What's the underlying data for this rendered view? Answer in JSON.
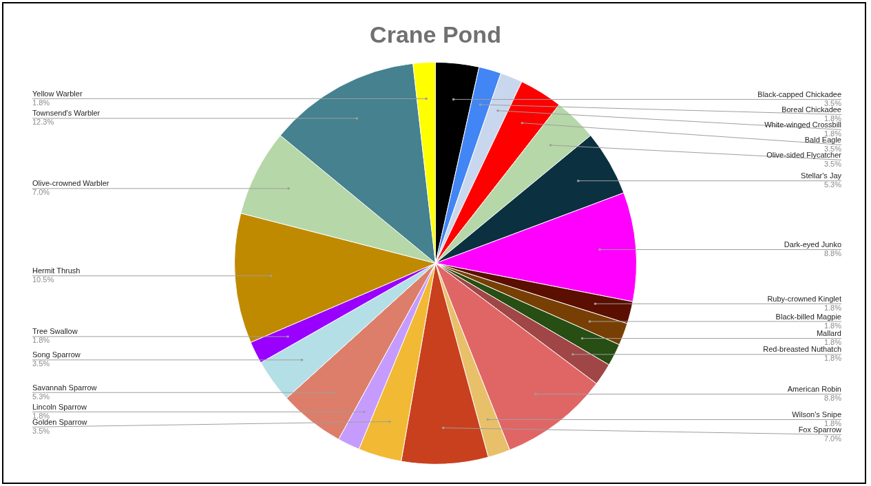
{
  "chart_data": {
    "type": "pie",
    "title": "Crane Pond",
    "categories": [
      "Black-capped Chickadee",
      "Boreal Chickadee",
      "White-winged Crossbill",
      "Bald Eagle",
      "Olive-sided Flycatcher",
      "Stellar's Jay",
      "Dark-eyed Junko",
      "Ruby-crowned Kinglet",
      "Black-billed Magpie",
      "Mallard",
      "Red-breasted Nuthatch",
      "American Robin",
      "Wilson's Snipe",
      "Fox Sparrow",
      "Golden Sparrow",
      "Lincoln Sparrow",
      "Savannah Sparrow",
      "Song Sparrow",
      "Tree Swallow",
      "Hermit Thrush",
      "Olive-crowned Warbler",
      "Townsend's Warbler",
      "Yellow Warbler"
    ],
    "values": [
      3.5,
      1.8,
      1.8,
      3.5,
      3.5,
      5.3,
      8.8,
      1.8,
      1.8,
      1.8,
      1.8,
      8.8,
      1.8,
      7.0,
      3.5,
      1.8,
      5.3,
      3.5,
      1.8,
      10.5,
      7.0,
      12.3,
      1.8
    ],
    "value_labels": [
      "3.5%",
      "1.8%",
      "1.8%",
      "3.5%",
      "3.5%",
      "5.3%",
      "8.8%",
      "1.8%",
      "1.8%",
      "1.8%",
      "1.8%",
      "8.8%",
      "1.8%",
      "7.0%",
      "3.5%",
      "1.8%",
      "5.3%",
      "3.5%",
      "1.8%",
      "10.5%",
      "7.0%",
      "12.3%",
      "1.8%"
    ],
    "colors": [
      "#000000",
      "#4285f4",
      "#c9d7ee",
      "#ff0000",
      "#b6d7a8",
      "#0b3140",
      "#ff00ff",
      "#5b0f00",
      "#783f04",
      "#274e13",
      "#a04646",
      "#e06666",
      "#e8c06a",
      "#c9401f",
      "#f1b934",
      "#c59cfd",
      "#dd7e6b",
      "#b5dfe6",
      "#9900ff",
      "#bf8a00",
      "#b6d7a8",
      "#45818e",
      "#ffff00"
    ]
  }
}
